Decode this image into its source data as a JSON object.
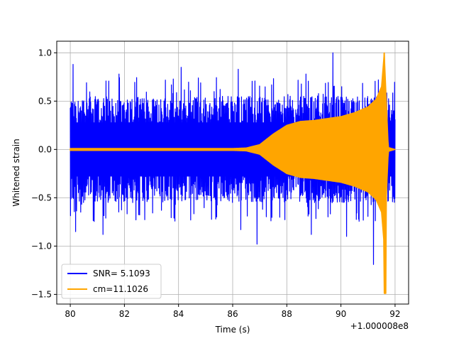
{
  "chart_data": {
    "type": "line",
    "title": "",
    "xlabel": "Time (s)",
    "ylabel": "Whitened strain",
    "x_offset_label": "+1.000008e8",
    "xlim": [
      79.5,
      92.5
    ],
    "ylim": [
      -1.6,
      1.12
    ],
    "xticks": [
      80,
      82,
      84,
      86,
      88,
      90,
      92
    ],
    "xtick_labels": [
      "80",
      "82",
      "84",
      "86",
      "88",
      "90",
      "92"
    ],
    "yticks": [
      1.0,
      0.5,
      0.0,
      -0.5,
      -1.0,
      -1.5
    ],
    "ytick_labels": [
      "1.0",
      "0.5",
      "0.0",
      "−0.5",
      "−1.0",
      "−1.5"
    ],
    "grid": true,
    "legend_position": "lower-left",
    "series": [
      {
        "name": "SNR= 5.1093",
        "color": "#0000ff",
        "x_range": [
          80.0,
          92.0
        ],
        "envelope_typical": 0.55,
        "peaks": [
          {
            "x": 80.1,
            "y": 0.88
          },
          {
            "x": 80.2,
            "y": -0.85
          },
          {
            "x": 81.2,
            "y": -0.88
          },
          {
            "x": 81.8,
            "y": 0.78
          },
          {
            "x": 84.1,
            "y": 0.85
          },
          {
            "x": 86.2,
            "y": 0.83
          },
          {
            "x": 86.3,
            "y": -0.83
          },
          {
            "x": 86.9,
            "y": -0.98
          },
          {
            "x": 88.7,
            "y": 0.78
          },
          {
            "x": 88.9,
            "y": -0.88
          },
          {
            "x": 89.7,
            "y": 1.0
          },
          {
            "x": 90.2,
            "y": -0.9
          },
          {
            "x": 91.2,
            "y": -1.19
          },
          {
            "x": 91.6,
            "y": 0.85
          }
        ]
      },
      {
        "name": "cm=11.1026",
        "color": "#ffa500",
        "x_range": [
          80.0,
          92.0
        ],
        "envelope": [
          {
            "x": 80.0,
            "y": 0.01
          },
          {
            "x": 86.0,
            "y": 0.01
          },
          {
            "x": 86.5,
            "y": 0.015
          },
          {
            "x": 87.0,
            "y": 0.05
          },
          {
            "x": 87.5,
            "y": 0.16
          },
          {
            "x": 88.0,
            "y": 0.25
          },
          {
            "x": 88.5,
            "y": 0.29
          },
          {
            "x": 89.0,
            "y": 0.3
          },
          {
            "x": 89.5,
            "y": 0.32
          },
          {
            "x": 90.0,
            "y": 0.34
          },
          {
            "x": 90.5,
            "y": 0.38
          },
          {
            "x": 91.0,
            "y": 0.44
          },
          {
            "x": 91.3,
            "y": 0.52
          },
          {
            "x": 91.5,
            "y": 0.65
          },
          {
            "x": 91.6,
            "y": 1.0
          },
          {
            "x": 91.75,
            "y": 0.02
          },
          {
            "x": 92.0,
            "y": 0.0
          }
        ],
        "min_point": {
          "x": 91.62,
          "y": -1.49
        },
        "max_point": {
          "x": 91.6,
          "y": 1.0
        }
      }
    ]
  }
}
